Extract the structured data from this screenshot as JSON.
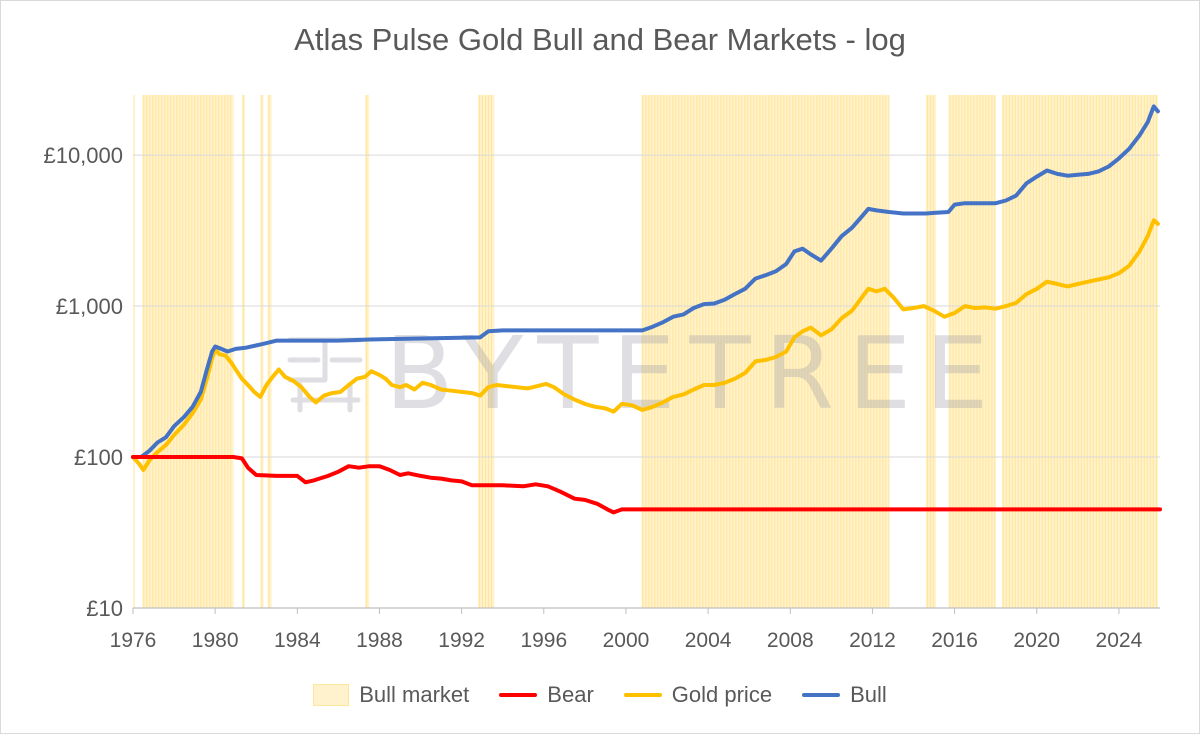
{
  "chart_data": {
    "type": "line",
    "title": "Atlas Pulse Gold Bull and Bear Markets - log",
    "y_scale": "log",
    "ylim": [
      10,
      25000
    ],
    "xlim": [
      1976,
      2026
    ],
    "y_ticks": [
      10,
      100,
      1000,
      10000
    ],
    "y_tick_labels": [
      "£10",
      "£100",
      "£1,000",
      "£10,000"
    ],
    "x_ticks": [
      1976,
      1980,
      1984,
      1988,
      1992,
      1996,
      2000,
      2004,
      2008,
      2012,
      2016,
      2020,
      2024
    ],
    "x_tick_labels": [
      "1976",
      "1980",
      "1984",
      "1988",
      "1992",
      "1996",
      "2000",
      "2004",
      "2008",
      "2012",
      "2016",
      "2020",
      "2024"
    ],
    "grid": "horizontal",
    "legend_position": "bottom",
    "legend": [
      "Bull market",
      "Bear",
      "Gold price",
      "Bull"
    ],
    "bull_market_periods": [
      [
        1976.0,
        1976.05
      ],
      [
        1976.45,
        1980.9
      ],
      [
        1981.3,
        1981.45
      ],
      [
        1982.2,
        1982.35
      ],
      [
        1982.55,
        1982.75
      ],
      [
        1987.3,
        1987.5
      ],
      [
        1992.8,
        1993.6
      ],
      [
        2000.75,
        2012.8
      ],
      [
        2014.6,
        2015.1
      ],
      [
        2015.7,
        2018.0
      ],
      [
        2018.3,
        2025.9
      ]
    ],
    "series": [
      {
        "name": "Gold price",
        "color": "#ffc000",
        "points": [
          [
            1976.0,
            100
          ],
          [
            1976.3,
            90
          ],
          [
            1976.5,
            82
          ],
          [
            1976.8,
            95
          ],
          [
            1977.2,
            108
          ],
          [
            1977.6,
            120
          ],
          [
            1978.0,
            140
          ],
          [
            1978.5,
            165
          ],
          [
            1978.9,
            195
          ],
          [
            1979.3,
            240
          ],
          [
            1979.6,
            330
          ],
          [
            1979.85,
            450
          ],
          [
            1980.0,
            520
          ],
          [
            1980.2,
            480
          ],
          [
            1980.5,
            470
          ],
          [
            1980.8,
            420
          ],
          [
            1981.0,
            380
          ],
          [
            1981.3,
            330
          ],
          [
            1981.6,
            300
          ],
          [
            1981.9,
            270
          ],
          [
            1982.2,
            250
          ],
          [
            1982.5,
            300
          ],
          [
            1982.8,
            340
          ],
          [
            1983.1,
            380
          ],
          [
            1983.4,
            340
          ],
          [
            1983.8,
            320
          ],
          [
            1984.2,
            290
          ],
          [
            1984.6,
            250
          ],
          [
            1984.9,
            230
          ],
          [
            1985.3,
            255
          ],
          [
            1985.7,
            265
          ],
          [
            1986.1,
            270
          ],
          [
            1986.5,
            300
          ],
          [
            1986.9,
            330
          ],
          [
            1987.3,
            340
          ],
          [
            1987.6,
            370
          ],
          [
            1988.0,
            350
          ],
          [
            1988.3,
            330
          ],
          [
            1988.6,
            300
          ],
          [
            1989.0,
            290
          ],
          [
            1989.3,
            300
          ],
          [
            1989.7,
            280
          ],
          [
            1990.1,
            310
          ],
          [
            1990.5,
            300
          ],
          [
            1991.0,
            280
          ],
          [
            1991.5,
            275
          ],
          [
            1992.0,
            270
          ],
          [
            1992.5,
            265
          ],
          [
            1992.9,
            255
          ],
          [
            1993.3,
            290
          ],
          [
            1993.7,
            300
          ],
          [
            1994.2,
            295
          ],
          [
            1994.7,
            290
          ],
          [
            1995.2,
            285
          ],
          [
            1995.7,
            295
          ],
          [
            1996.1,
            305
          ],
          [
            1996.5,
            290
          ],
          [
            1997.0,
            260
          ],
          [
            1997.5,
            240
          ],
          [
            1998.0,
            225
          ],
          [
            1998.5,
            215
          ],
          [
            1999.0,
            210
          ],
          [
            1999.4,
            200
          ],
          [
            1999.8,
            225
          ],
          [
            2000.3,
            220
          ],
          [
            2000.8,
            205
          ],
          [
            2001.3,
            215
          ],
          [
            2001.8,
            230
          ],
          [
            2002.3,
            250
          ],
          [
            2002.8,
            260
          ],
          [
            2003.3,
            280
          ],
          [
            2003.8,
            300
          ],
          [
            2004.3,
            300
          ],
          [
            2004.8,
            310
          ],
          [
            2005.3,
            330
          ],
          [
            2005.8,
            360
          ],
          [
            2006.3,
            430
          ],
          [
            2006.8,
            440
          ],
          [
            2007.3,
            460
          ],
          [
            2007.8,
            500
          ],
          [
            2008.2,
            620
          ],
          [
            2008.6,
            680
          ],
          [
            2009.0,
            720
          ],
          [
            2009.5,
            640
          ],
          [
            2010.0,
            700
          ],
          [
            2010.5,
            830
          ],
          [
            2011.0,
            930
          ],
          [
            2011.4,
            1100
          ],
          [
            2011.8,
            1300
          ],
          [
            2012.2,
            1250
          ],
          [
            2012.6,
            1300
          ],
          [
            2013.0,
            1150
          ],
          [
            2013.5,
            950
          ],
          [
            2014.0,
            970
          ],
          [
            2014.5,
            1000
          ],
          [
            2015.0,
            930
          ],
          [
            2015.5,
            850
          ],
          [
            2016.0,
            900
          ],
          [
            2016.5,
            1000
          ],
          [
            2017.0,
            970
          ],
          [
            2017.5,
            980
          ],
          [
            2018.0,
            960
          ],
          [
            2018.5,
            1000
          ],
          [
            2019.0,
            1050
          ],
          [
            2019.5,
            1200
          ],
          [
            2020.0,
            1300
          ],
          [
            2020.5,
            1450
          ],
          [
            2021.0,
            1400
          ],
          [
            2021.5,
            1350
          ],
          [
            2022.0,
            1400
          ],
          [
            2022.5,
            1450
          ],
          [
            2023.0,
            1500
          ],
          [
            2023.5,
            1550
          ],
          [
            2024.0,
            1650
          ],
          [
            2024.5,
            1850
          ],
          [
            2025.0,
            2300
          ],
          [
            2025.4,
            2900
          ],
          [
            2025.7,
            3700
          ],
          [
            2025.9,
            3500
          ]
        ]
      },
      {
        "name": "Bull",
        "color": "#4472c4",
        "points": [
          [
            1976.0,
            100
          ],
          [
            1976.4,
            100
          ],
          [
            1976.8,
            110
          ],
          [
            1977.2,
            125
          ],
          [
            1977.6,
            135
          ],
          [
            1978.0,
            160
          ],
          [
            1978.5,
            185
          ],
          [
            1978.9,
            215
          ],
          [
            1979.3,
            270
          ],
          [
            1979.6,
            380
          ],
          [
            1979.85,
            500
          ],
          [
            1980.0,
            540
          ],
          [
            1980.3,
            520
          ],
          [
            1980.6,
            500
          ],
          [
            1981.0,
            520
          ],
          [
            1981.5,
            530
          ],
          [
            1982.3,
            560
          ],
          [
            1983.0,
            590
          ],
          [
            1984.0,
            590
          ],
          [
            1986.0,
            590
          ],
          [
            1987.5,
            600
          ],
          [
            1990.0,
            610
          ],
          [
            1992.9,
            620
          ],
          [
            1993.3,
            680
          ],
          [
            1994.0,
            690
          ],
          [
            1996.0,
            690
          ],
          [
            1998.0,
            690
          ],
          [
            2000.8,
            690
          ],
          [
            2001.3,
            730
          ],
          [
            2001.8,
            780
          ],
          [
            2002.3,
            850
          ],
          [
            2002.8,
            880
          ],
          [
            2003.3,
            970
          ],
          [
            2003.8,
            1030
          ],
          [
            2004.3,
            1040
          ],
          [
            2004.8,
            1100
          ],
          [
            2005.3,
            1200
          ],
          [
            2005.8,
            1300
          ],
          [
            2006.3,
            1520
          ],
          [
            2006.8,
            1600
          ],
          [
            2007.3,
            1700
          ],
          [
            2007.8,
            1900
          ],
          [
            2008.2,
            2300
          ],
          [
            2008.6,
            2400
          ],
          [
            2009.0,
            2200
          ],
          [
            2009.5,
            2000
          ],
          [
            2010.0,
            2400
          ],
          [
            2010.5,
            2900
          ],
          [
            2011.0,
            3300
          ],
          [
            2011.4,
            3800
          ],
          [
            2011.8,
            4400
          ],
          [
            2012.2,
            4300
          ],
          [
            2012.8,
            4200
          ],
          [
            2013.5,
            4100
          ],
          [
            2014.6,
            4100
          ],
          [
            2015.1,
            4150
          ],
          [
            2015.7,
            4200
          ],
          [
            2016.0,
            4700
          ],
          [
            2016.5,
            4800
          ],
          [
            2017.0,
            4800
          ],
          [
            2018.0,
            4800
          ],
          [
            2018.5,
            5000
          ],
          [
            2019.0,
            5400
          ],
          [
            2019.5,
            6500
          ],
          [
            2020.0,
            7200
          ],
          [
            2020.5,
            7900
          ],
          [
            2021.0,
            7500
          ],
          [
            2021.5,
            7300
          ],
          [
            2022.0,
            7400
          ],
          [
            2022.5,
            7500
          ],
          [
            2023.0,
            7800
          ],
          [
            2023.5,
            8400
          ],
          [
            2024.0,
            9500
          ],
          [
            2024.5,
            11000
          ],
          [
            2025.0,
            13500
          ],
          [
            2025.4,
            16500
          ],
          [
            2025.7,
            21000
          ],
          [
            2025.9,
            19500
          ]
        ]
      },
      {
        "name": "Bear",
        "color": "#ff0000",
        "points": [
          [
            1976.0,
            100
          ],
          [
            1980.9,
            100
          ],
          [
            1981.3,
            98
          ],
          [
            1981.6,
            85
          ],
          [
            1982.0,
            76
          ],
          [
            1983.0,
            75
          ],
          [
            1984.0,
            75
          ],
          [
            1984.4,
            68
          ],
          [
            1984.8,
            70
          ],
          [
            1985.5,
            75
          ],
          [
            1986.0,
            80
          ],
          [
            1986.5,
            87
          ],
          [
            1987.0,
            85
          ],
          [
            1987.5,
            87
          ],
          [
            1988.0,
            87
          ],
          [
            1988.5,
            82
          ],
          [
            1989.0,
            76
          ],
          [
            1989.4,
            78
          ],
          [
            1990.0,
            75
          ],
          [
            1990.5,
            73
          ],
          [
            1991.0,
            72
          ],
          [
            1991.5,
            70
          ],
          [
            1992.0,
            69
          ],
          [
            1992.5,
            65
          ],
          [
            1993.0,
            65
          ],
          [
            1994.0,
            65
          ],
          [
            1995.0,
            64
          ],
          [
            1995.6,
            66
          ],
          [
            1996.2,
            64
          ],
          [
            1996.8,
            59
          ],
          [
            1997.5,
            53
          ],
          [
            1998.0,
            52
          ],
          [
            1998.6,
            49
          ],
          [
            1999.1,
            45
          ],
          [
            1999.4,
            43
          ],
          [
            1999.8,
            45
          ],
          [
            2026.0,
            45
          ]
        ]
      }
    ]
  },
  "watermark": "BYTETREE"
}
